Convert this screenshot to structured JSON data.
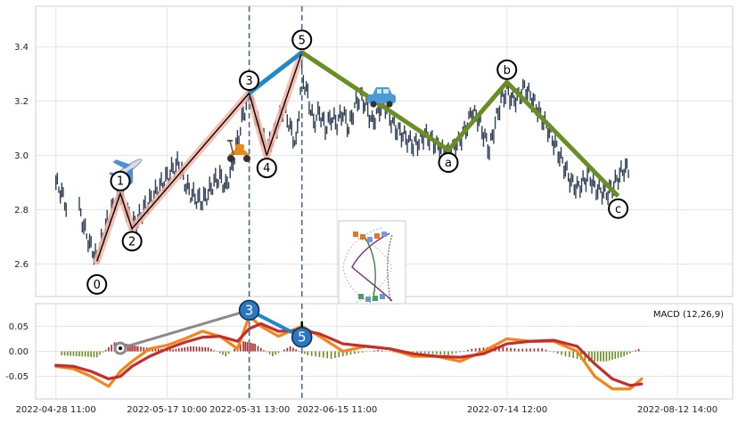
{
  "chart_data": [
    {
      "type": "candlestick",
      "panel": "price",
      "title": "",
      "xlabel": "",
      "ylabel": "",
      "ylim": [
        2.48,
        3.55
      ],
      "yticks": [
        2.6,
        2.8,
        3.0,
        3.2,
        3.4
      ],
      "ytick_labels": [
        "2.6",
        "2.8",
        "3.0",
        "3.2",
        "3.4"
      ],
      "x_range": [
        "2022-04-25 00:00",
        "2022-08-22 00:00"
      ],
      "grid": true,
      "colors": {
        "candle": "#2f3e55",
        "wave_line": "#000000",
        "wave_band": "#f5b4a4",
        "wave_3_5": "#1e88c8",
        "correction": "#6b8e23",
        "vline": "#4a6a8a"
      },
      "price_series": [
        [
          "2022-04-28 11:00",
          2.9
        ],
        [
          "2022-04-29 11:00",
          2.86
        ],
        [
          "2022-05-02 11:00",
          2.8
        ],
        [
          "2022-05-03 11:00",
          2.72
        ],
        [
          "2022-05-04 11:00",
          2.66
        ],
        [
          "2022-05-05 11:00",
          2.62
        ],
        [
          "2022-05-06 11:00",
          2.7
        ],
        [
          "2022-05-07 11:00",
          2.77
        ],
        [
          "2022-05-08 11:00",
          2.82
        ],
        [
          "2022-05-09 11:00",
          2.86
        ],
        [
          "2022-05-10 11:00",
          2.8
        ],
        [
          "2022-05-11 11:00",
          2.74
        ],
        [
          "2022-05-12 11:00",
          2.76
        ],
        [
          "2022-05-13 11:00",
          2.8
        ],
        [
          "2022-05-14 11:00",
          2.83
        ],
        [
          "2022-05-15 11:00",
          2.86
        ],
        [
          "2022-05-16 11:00",
          2.89
        ],
        [
          "2022-05-17 11:00",
          2.92
        ],
        [
          "2022-05-18 11:00",
          2.95
        ],
        [
          "2022-05-19 11:00",
          2.97
        ],
        [
          "2022-05-20 11:00",
          2.9
        ],
        [
          "2022-05-21 11:00",
          2.86
        ],
        [
          "2022-05-22 11:00",
          2.84
        ],
        [
          "2022-05-23 11:00",
          2.83
        ],
        [
          "2022-05-24 11:00",
          2.86
        ],
        [
          "2022-05-25 11:00",
          2.9
        ],
        [
          "2022-05-26 11:00",
          2.92
        ],
        [
          "2022-05-27 11:00",
          2.88
        ],
        [
          "2022-05-28 11:00",
          2.95
        ],
        [
          "2022-05-29 11:00",
          3.05
        ],
        [
          "2022-05-30 11:00",
          3.15
        ],
        [
          "2022-05-31 11:00",
          3.22
        ],
        [
          "2022-06-01 11:00",
          3.15
        ],
        [
          "2022-06-02 11:00",
          3.08
        ],
        [
          "2022-06-03 11:00",
          3.02
        ],
        [
          "2022-06-04 11:00",
          3.06
        ],
        [
          "2022-06-05 11:00",
          3.12
        ],
        [
          "2022-06-06 11:00",
          3.18
        ],
        [
          "2022-06-07 11:00",
          3.1
        ],
        [
          "2022-06-08 11:00",
          3.04
        ],
        [
          "2022-06-09 11:00",
          3.3
        ],
        [
          "2022-06-10 11:00",
          3.22
        ],
        [
          "2022-06-11 11:00",
          3.12
        ],
        [
          "2022-06-12 11:00",
          3.16
        ],
        [
          "2022-06-13 11:00",
          3.1
        ],
        [
          "2022-06-14 11:00",
          3.14
        ],
        [
          "2022-06-15 11:00",
          3.12
        ],
        [
          "2022-06-16 11:00",
          3.16
        ],
        [
          "2022-06-17 11:00",
          3.1
        ],
        [
          "2022-06-18 11:00",
          3.18
        ],
        [
          "2022-06-19 11:00",
          3.22
        ],
        [
          "2022-06-20 11:00",
          3.18
        ],
        [
          "2022-06-21 11:00",
          3.12
        ],
        [
          "2022-06-22 11:00",
          3.16
        ],
        [
          "2022-06-23 11:00",
          3.2
        ],
        [
          "2022-06-24 11:00",
          3.14
        ],
        [
          "2022-06-25 11:00",
          3.1
        ],
        [
          "2022-06-26 11:00",
          3.08
        ],
        [
          "2022-06-27 11:00",
          3.06
        ],
        [
          "2022-06-28 11:00",
          3.04
        ],
        [
          "2022-06-29 11:00",
          3.05
        ],
        [
          "2022-06-30 11:00",
          3.08
        ],
        [
          "2022-07-01 11:00",
          3.06
        ],
        [
          "2022-07-02 11:00",
          3.04
        ],
        [
          "2022-07-03 11:00",
          3.02
        ],
        [
          "2022-07-04 11:00",
          3.01
        ],
        [
          "2022-07-05 11:00",
          3.03
        ],
        [
          "2022-07-06 11:00",
          3.06
        ],
        [
          "2022-07-07 11:00",
          3.1
        ],
        [
          "2022-07-08 11:00",
          3.16
        ],
        [
          "2022-07-09 11:00",
          3.14
        ],
        [
          "2022-07-10 11:00",
          3.08
        ],
        [
          "2022-07-11 11:00",
          3.02
        ],
        [
          "2022-07-12 11:00",
          3.12
        ],
        [
          "2022-07-13 11:00",
          3.2
        ],
        [
          "2022-07-14 11:00",
          3.24
        ],
        [
          "2022-07-15 11:00",
          3.2
        ],
        [
          "2022-07-16 11:00",
          3.22
        ],
        [
          "2022-07-17 11:00",
          3.25
        ],
        [
          "2022-07-18 11:00",
          3.22
        ],
        [
          "2022-07-19 11:00",
          3.18
        ],
        [
          "2022-07-20 11:00",
          3.14
        ],
        [
          "2022-07-21 11:00",
          3.1
        ],
        [
          "2022-07-22 11:00",
          3.05
        ],
        [
          "2022-07-23 11:00",
          3.0
        ],
        [
          "2022-07-24 11:00",
          2.95
        ],
        [
          "2022-07-25 11:00",
          2.9
        ],
        [
          "2022-07-26 11:00",
          2.88
        ],
        [
          "2022-07-27 11:00",
          2.9
        ],
        [
          "2022-07-28 11:00",
          2.93
        ],
        [
          "2022-07-29 11:00",
          2.88
        ],
        [
          "2022-07-30 11:00",
          2.87
        ],
        [
          "2022-07-31 11:00",
          2.86
        ],
        [
          "2022-08-01 11:00",
          2.88
        ],
        [
          "2022-08-02 11:00",
          2.92
        ],
        [
          "2022-08-03 11:00",
          2.95
        ]
      ],
      "elliott_waves": {
        "impulse": [
          {
            "label": "0",
            "date": "2022-05-05 11:00",
            "value": 2.61
          },
          {
            "label": "1",
            "date": "2022-05-09 11:00",
            "value": 2.86
          },
          {
            "label": "2",
            "date": "2022-05-11 11:00",
            "value": 2.73
          },
          {
            "label": "3",
            "date": "2022-05-31 11:00",
            "value": 3.23
          },
          {
            "label": "4",
            "date": "2022-06-03 11:00",
            "value": 3.0
          },
          {
            "label": "5",
            "date": "2022-06-09 11:00",
            "value": 3.38
          }
        ],
        "correction": [
          {
            "label": "a",
            "date": "2022-07-04 11:00",
            "value": 3.02
          },
          {
            "label": "b",
            "date": "2022-07-14 11:00",
            "value": 3.27
          },
          {
            "label": "c",
            "date": "2022-08-02 11:00",
            "value": 2.85
          }
        ]
      },
      "vertical_lines": [
        "2022-05-31 11:00",
        "2022-06-09 11:00"
      ],
      "icons": [
        "airplane-icon",
        "scooter-icon",
        "car-icon",
        "roller-coaster-icon"
      ]
    },
    {
      "type": "macd",
      "panel": "indicator",
      "title": "MACD (12,26,9)",
      "ylim": [
        -0.095,
        0.095
      ],
      "yticks": [
        -0.05,
        0.0,
        0.05
      ],
      "ytick_labels": [
        "-0.05",
        "0.00",
        "0.05"
      ],
      "x_range": [
        "2022-04-25 00:00",
        "2022-08-22 00:00"
      ],
      "xticks": [
        "2022-04-28 11:00",
        "2022-05-17 10:00",
        "2022-05-31 13:00",
        "2022-06-15 11:00",
        "2022-07-14 12:00",
        "2022-08-12 14:00"
      ],
      "xtick_labels": [
        "2022-04-28 11:00",
        "2022-05-17 10:00",
        "2022-05-31 13:00",
        "2022-06-15 11:00",
        "2022-07-14 12:00",
        "2022-08-12 14:00"
      ],
      "colors": {
        "macd": "#f58518",
        "signal": "#c62d2d",
        "hist_pos": "#b22222",
        "hist_neg": "#6b8e23"
      },
      "series": [
        {
          "name": "",
          "color": "#f58518",
          "points": [
            [
              "2022-04-28 11:00",
              -0.03
            ],
            [
              "2022-05-01 11:00",
              -0.035
            ],
            [
              "2022-05-04 11:00",
              -0.05
            ],
            [
              "2022-05-07 11:00",
              -0.07
            ],
            [
              "2022-05-09 11:00",
              -0.04
            ],
            [
              "2022-05-11 11:00",
              -0.02
            ],
            [
              "2022-05-14 11:00",
              0.005
            ],
            [
              "2022-05-17 11:00",
              0.012
            ],
            [
              "2022-05-20 11:00",
              0.025
            ],
            [
              "2022-05-23 11:00",
              0.04
            ],
            [
              "2022-05-26 11:00",
              0.03
            ],
            [
              "2022-05-29 11:00",
              0.005
            ],
            [
              "2022-05-31 11:00",
              0.07
            ],
            [
              "2022-06-02 11:00",
              0.05
            ],
            [
              "2022-06-05 11:00",
              0.03
            ],
            [
              "2022-06-09 11:00",
              0.05
            ],
            [
              "2022-06-12 11:00",
              0.03
            ],
            [
              "2022-06-16 11:00",
              0.0
            ],
            [
              "2022-06-20 11:00",
              0.01
            ],
            [
              "2022-06-24 11:00",
              0.005
            ],
            [
              "2022-06-28 11:00",
              -0.01
            ],
            [
              "2022-07-02 11:00",
              -0.01
            ],
            [
              "2022-07-06 11:00",
              -0.02
            ],
            [
              "2022-07-10 11:00",
              0.0
            ],
            [
              "2022-07-14 11:00",
              0.025
            ],
            [
              "2022-07-18 11:00",
              0.02
            ],
            [
              "2022-07-22 11:00",
              0.02
            ],
            [
              "2022-07-26 11:00",
              0.0
            ],
            [
              "2022-07-29 11:00",
              -0.05
            ],
            [
              "2022-08-01 11:00",
              -0.075
            ],
            [
              "2022-08-04 11:00",
              -0.075
            ],
            [
              "2022-08-06 11:00",
              -0.055
            ]
          ]
        },
        {
          "name": "",
          "color": "#c62d2d",
          "points": [
            [
              "2022-04-28 11:00",
              -0.028
            ],
            [
              "2022-05-01 11:00",
              -0.03
            ],
            [
              "2022-05-04 11:00",
              -0.04
            ],
            [
              "2022-05-07 11:00",
              -0.055
            ],
            [
              "2022-05-09 11:00",
              -0.05
            ],
            [
              "2022-05-11 11:00",
              -0.03
            ],
            [
              "2022-05-14 11:00",
              -0.01
            ],
            [
              "2022-05-17 11:00",
              0.005
            ],
            [
              "2022-05-20 11:00",
              0.018
            ],
            [
              "2022-05-23 11:00",
              0.028
            ],
            [
              "2022-05-26 11:00",
              0.03
            ],
            [
              "2022-05-29 11:00",
              0.02
            ],
            [
              "2022-05-31 11:00",
              0.045
            ],
            [
              "2022-06-02 11:00",
              0.055
            ],
            [
              "2022-06-05 11:00",
              0.04
            ],
            [
              "2022-06-09 11:00",
              0.042
            ],
            [
              "2022-06-12 11:00",
              0.035
            ],
            [
              "2022-06-16 11:00",
              0.015
            ],
            [
              "2022-06-20 11:00",
              0.01
            ],
            [
              "2022-06-24 11:00",
              0.005
            ],
            [
              "2022-06-28 11:00",
              -0.005
            ],
            [
              "2022-07-02 11:00",
              -0.01
            ],
            [
              "2022-07-06 11:00",
              -0.012
            ],
            [
              "2022-07-10 11:00",
              -0.005
            ],
            [
              "2022-07-14 11:00",
              0.015
            ],
            [
              "2022-07-18 11:00",
              0.02
            ],
            [
              "2022-07-22 11:00",
              0.022
            ],
            [
              "2022-07-26 11:00",
              0.01
            ],
            [
              "2022-07-29 11:00",
              -0.025
            ],
            [
              "2022-08-01 11:00",
              -0.055
            ],
            [
              "2022-08-04 11:00",
              -0.068
            ],
            [
              "2022-08-06 11:00",
              -0.065
            ]
          ]
        }
      ],
      "histogram": [
        [
          "2022-04-29 11:00",
          -0.008
        ],
        [
          "2022-05-02 11:00",
          -0.01
        ],
        [
          "2022-05-05 11:00",
          -0.012
        ],
        [
          "2022-05-08 11:00",
          0.018
        ],
        [
          "2022-05-10 11:00",
          0.015
        ],
        [
          "2022-05-12 11:00",
          0.01
        ],
        [
          "2022-05-15 11:00",
          0.005
        ],
        [
          "2022-05-18 11:00",
          0.004
        ],
        [
          "2022-05-21 11:00",
          0.01
        ],
        [
          "2022-05-24 11:00",
          0.008
        ],
        [
          "2022-05-27 11:00",
          -0.01
        ],
        [
          "2022-05-30 11:00",
          0.02
        ],
        [
          "2022-06-01 11:00",
          0.015
        ],
        [
          "2022-06-04 11:00",
          -0.01
        ],
        [
          "2022-06-07 11:00",
          0.01
        ],
        [
          "2022-06-10 11:00",
          -0.008
        ],
        [
          "2022-06-14 11:00",
          -0.015
        ],
        [
          "2022-06-18 11:00",
          -0.005
        ],
        [
          "2022-06-22 11:00",
          0.003
        ],
        [
          "2022-06-26 11:00",
          -0.005
        ],
        [
          "2022-06-30 11:00",
          -0.004
        ],
        [
          "2022-07-04 11:00",
          -0.008
        ],
        [
          "2022-07-08 11:00",
          0.005
        ],
        [
          "2022-07-12 11:00",
          0.01
        ],
        [
          "2022-07-16 11:00",
          0.005
        ],
        [
          "2022-07-20 11:00",
          0.006
        ],
        [
          "2022-07-24 11:00",
          -0.01
        ],
        [
          "2022-07-28 11:00",
          -0.02
        ],
        [
          "2022-07-31 11:00",
          -0.02
        ],
        [
          "2022-08-03 11:00",
          -0.01
        ],
        [
          "2022-08-06 11:00",
          0.008
        ]
      ],
      "divergence": [
        {
          "label": "",
          "date": "2022-05-09 11:00",
          "value": 0.006
        },
        {
          "label": "3",
          "date": "2022-05-31 11:00",
          "value": 0.082
        },
        {
          "label": "5",
          "date": "2022-06-09 11:00",
          "value": 0.028
        }
      ],
      "vertical_lines": [
        "2022-05-31 11:00",
        "2022-06-09 11:00"
      ]
    }
  ]
}
